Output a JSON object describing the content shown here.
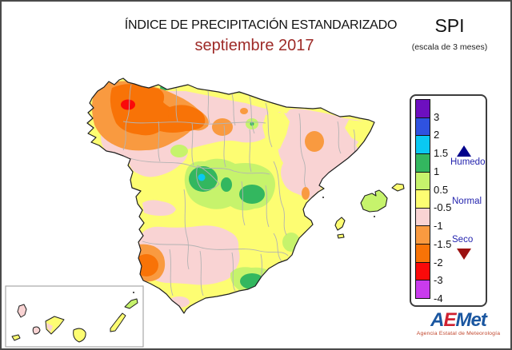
{
  "header": {
    "title": "ÍNDICE DE PRECIPITACIÓN ESTANDARIZADO",
    "subtitle": "septiembre 2017",
    "index_acronym": "SPI",
    "scale_note": "(escala de 3 meses)"
  },
  "legend": {
    "ticks": [
      "3",
      "2",
      "1.5",
      "1",
      "0.5",
      "-0.5",
      "-1",
      "-1.5",
      "-2",
      "-3",
      "-4"
    ],
    "colors": [
      "#6d0fbf",
      "#2f52e0",
      "#0ac8f2",
      "#33b75f",
      "#c6f36c",
      "#fdfd72",
      "#f9d3d3",
      "#f99a40",
      "#f87307",
      "#fa0a0a",
      "#c93bed"
    ],
    "labels": {
      "humid": "Humedo",
      "normal": "Normal",
      "dry": "Seco"
    }
  },
  "palette": {
    "yellow": "#fdfd72",
    "pink": "#f9d3d3",
    "lightOrange": "#f99a40",
    "orange": "#f87307",
    "red": "#fa0a0a",
    "lightGreen": "#c6f36c",
    "green": "#33b75f",
    "cyan": "#0ac8f2",
    "coast": "#1f1f1f",
    "admin": "#b3b3b3",
    "insetBorder": "#a8a8a8",
    "subtitleRed": "#9e2b28",
    "legendText": "#2424ae",
    "humidTriangle": "#00008b",
    "dryTriangle": "#9b1111"
  },
  "logo": {
    "part_a": "A",
    "part_e": "E",
    "part_rest": "Met",
    "tagline": "Agencia Estatal de Meteorología"
  }
}
